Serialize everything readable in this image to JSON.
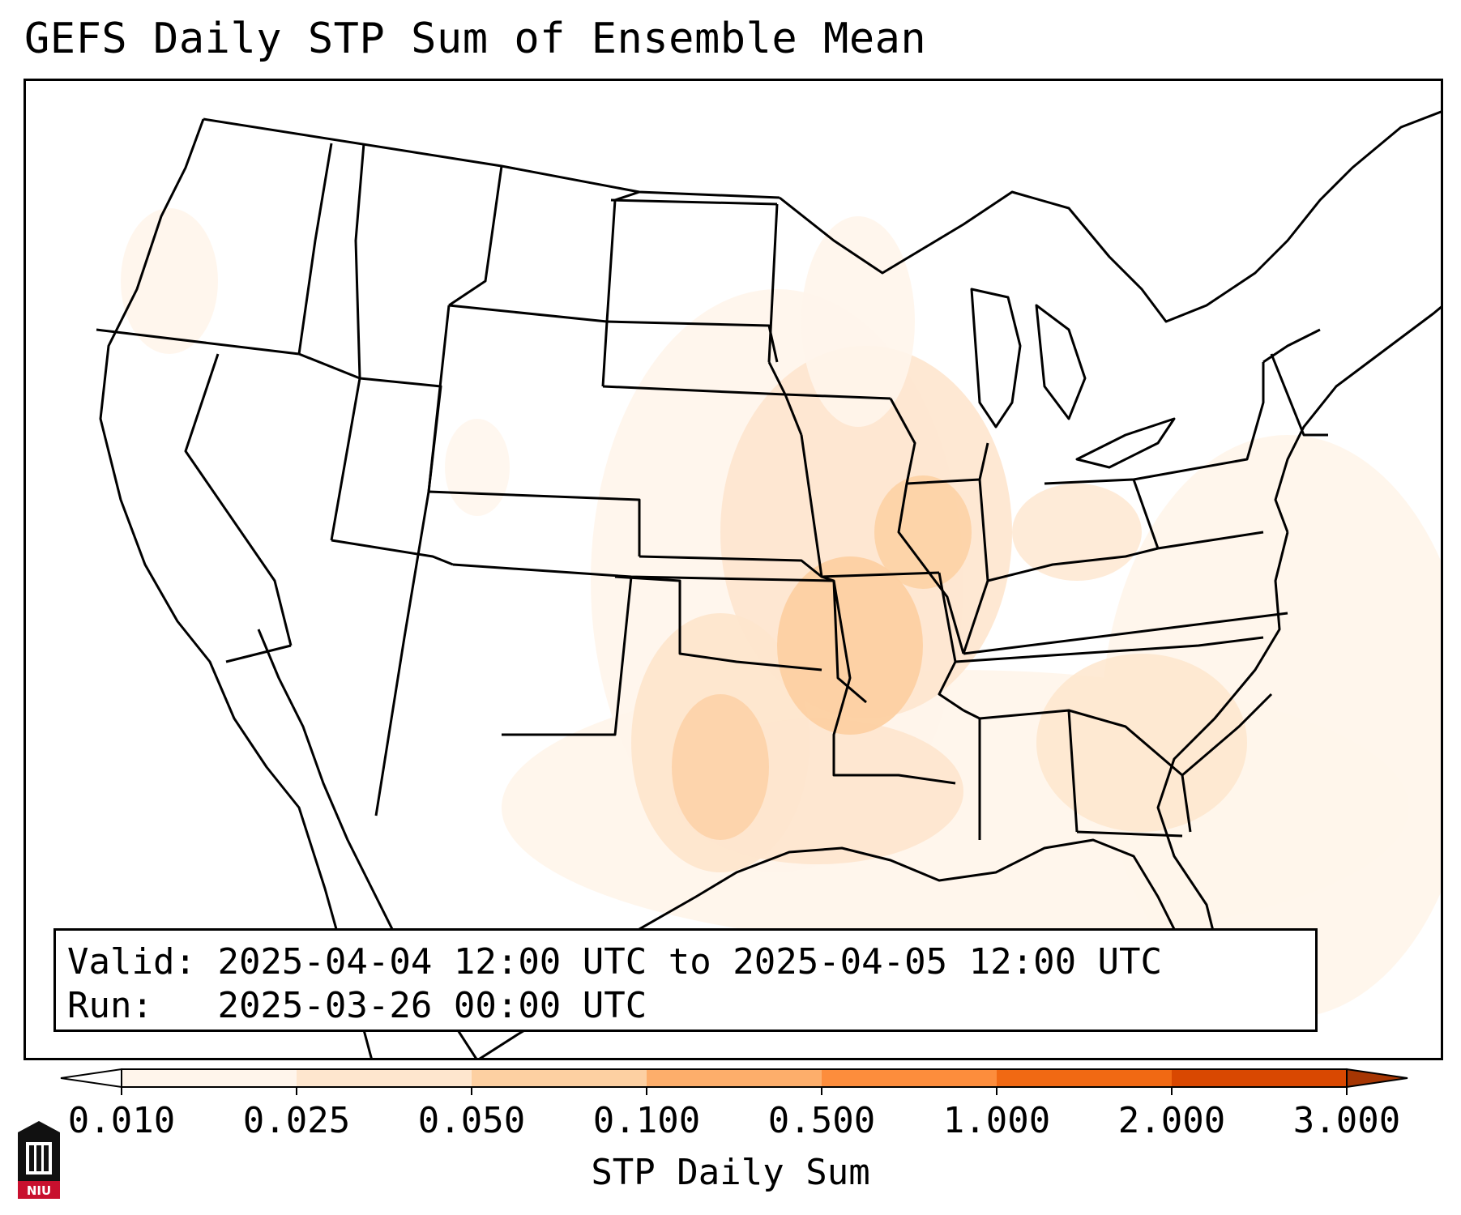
{
  "title": "GEFS Daily STP Sum of Ensemble Mean",
  "info": {
    "valid_label": "Valid:",
    "valid_value": "2025-04-04 12:00 UTC to 2025-04-05 12:00 UTC",
    "run_label": "Run:",
    "run_value": "2025-03-26 00:00 UTC"
  },
  "colorbar": {
    "label": "STP Daily Sum",
    "ticks": [
      "0.010",
      "0.025",
      "0.050",
      "0.100",
      "0.500",
      "1.000",
      "2.000",
      "3.000"
    ],
    "colors": [
      "#fff5eb",
      "#fee6ce",
      "#fdd0a2",
      "#fdae6b",
      "#fd8d3c",
      "#f16913",
      "#d94801",
      "#a63603"
    ]
  },
  "logo": {
    "text": "NIU",
    "icon": "niu-castle-logo"
  }
}
